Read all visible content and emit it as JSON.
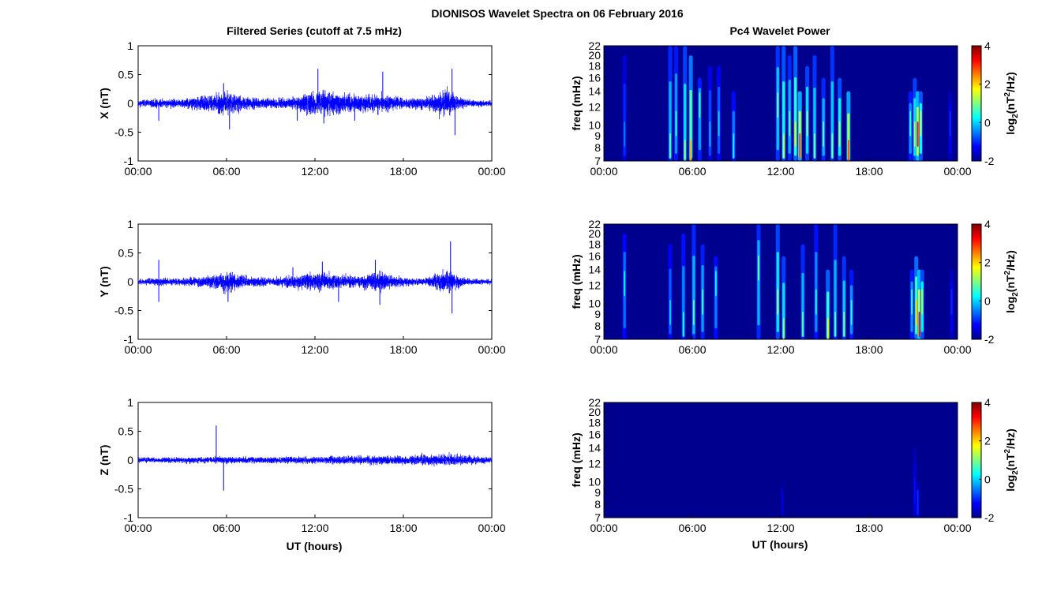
{
  "figure": {
    "title": "DIONISOS Wavelet Spectra on 06 February 2016",
    "left_column_title": "Filtered Series (cutoff at 7.5 mHz)",
    "right_column_title": "Pc4 Wavelet Power",
    "x_axis_label": "UT (hours)",
    "colors": {
      "trace": "#0000ff",
      "background": "#ffffff",
      "axis": "#000000",
      "spectrum_floor": "#00008f"
    }
  },
  "chart_data": [
    {
      "type": "line",
      "id": "series-x",
      "ylabel": "X (nT)",
      "xlim": [
        "00:00",
        "00:00"
      ],
      "x_ticks": [
        "00:00",
        "06:00",
        "12:00",
        "18:00",
        "00:00"
      ],
      "ylim": [
        -1,
        1
      ],
      "y_ticks": [
        "1",
        "0.5",
        "0",
        "-0.5",
        "-1"
      ],
      "grid": false,
      "envelope": {
        "description_hours": [
          0,
          1.5,
          3,
          4.5,
          6,
          7.5,
          9,
          10.5,
          12,
          13.5,
          15,
          16.5,
          18,
          19.5,
          21,
          21.5,
          22.5,
          24
        ],
        "amplitude_nT": [
          0.06,
          0.1,
          0.08,
          0.15,
          0.22,
          0.12,
          0.1,
          0.12,
          0.25,
          0.22,
          0.16,
          0.2,
          0.1,
          0.12,
          0.3,
          0.15,
          0.07,
          0.06
        ]
      },
      "spikes": [
        {
          "hour": 1.4,
          "value": -0.3
        },
        {
          "hour": 5.8,
          "value": 0.35
        },
        {
          "hour": 6.2,
          "value": -0.45
        },
        {
          "hour": 10.8,
          "value": -0.3
        },
        {
          "hour": 12.2,
          "value": 0.6
        },
        {
          "hour": 12.6,
          "value": -0.35
        },
        {
          "hour": 14.7,
          "value": -0.3
        },
        {
          "hour": 16.6,
          "value": 0.55
        },
        {
          "hour": 21.3,
          "value": 0.6
        },
        {
          "hour": 21.5,
          "value": -0.55
        }
      ]
    },
    {
      "type": "line",
      "id": "series-y",
      "ylabel": "Y (nT)",
      "xlim": [
        "00:00",
        "00:00"
      ],
      "x_ticks": [
        "00:00",
        "06:00",
        "12:00",
        "18:00",
        "00:00"
      ],
      "ylim": [
        -1,
        1
      ],
      "y_ticks": [
        "1",
        "0.5",
        "0",
        "-0.5",
        "-1"
      ],
      "grid": false,
      "envelope": {
        "description_hours": [
          0,
          1.5,
          3,
          4.5,
          6,
          7.5,
          9,
          10.5,
          12,
          13.5,
          15,
          16.5,
          18,
          19.5,
          21,
          21.5,
          22.5,
          24
        ],
        "amplitude_nT": [
          0.05,
          0.08,
          0.07,
          0.12,
          0.2,
          0.1,
          0.08,
          0.12,
          0.2,
          0.15,
          0.12,
          0.2,
          0.08,
          0.08,
          0.25,
          0.15,
          0.06,
          0.05
        ]
      },
      "spikes": [
        {
          "hour": 1.4,
          "value": 0.38
        },
        {
          "hour": 1.4,
          "value": -0.35
        },
        {
          "hour": 6.1,
          "value": -0.35
        },
        {
          "hour": 10.5,
          "value": 0.25
        },
        {
          "hour": 12.5,
          "value": 0.35
        },
        {
          "hour": 13.6,
          "value": -0.35
        },
        {
          "hour": 16.1,
          "value": 0.38
        },
        {
          "hour": 16.4,
          "value": -0.4
        },
        {
          "hour": 21.2,
          "value": 0.7
        },
        {
          "hour": 21.3,
          "value": -0.55
        }
      ]
    },
    {
      "type": "line",
      "id": "series-z",
      "ylabel": "Z (nT)",
      "xlim": [
        "00:00",
        "00:00"
      ],
      "x_ticks": [
        "00:00",
        "06:00",
        "12:00",
        "18:00",
        "00:00"
      ],
      "ylim": [
        -1,
        1
      ],
      "y_ticks": [
        "1",
        "0.5",
        "0",
        "-0.5",
        "-1"
      ],
      "grid": false,
      "envelope": {
        "description_hours": [
          0,
          3,
          6,
          9,
          12,
          15,
          18,
          21,
          24
        ],
        "amplitude_nT": [
          0.05,
          0.06,
          0.07,
          0.06,
          0.07,
          0.09,
          0.09,
          0.12,
          0.06
        ]
      },
      "spikes": [
        {
          "hour": 5.3,
          "value": 0.6
        },
        {
          "hour": 5.8,
          "value": -0.53
        }
      ]
    },
    {
      "type": "heatmap",
      "id": "spectrum-x",
      "ylabel": "freq (mHz)",
      "x_ticks": [
        "00:00",
        "06:00",
        "12:00",
        "18:00",
        "00:00"
      ],
      "y_ticks": [
        "22",
        "20",
        "18",
        "16",
        "14",
        "12",
        "10",
        "9",
        "8",
        "7"
      ],
      "ylim": [
        7,
        22
      ],
      "y_scale": "log",
      "colorbar": {
        "label": "log2(nT2/Hz)",
        "ticks": [
          "4",
          "2",
          "0",
          "-2"
        ],
        "range": [
          -2,
          4
        ]
      },
      "streaks": [
        {
          "hour": 1.4,
          "peak_mhz": 9,
          "top_mhz": 20,
          "power": -0.5
        },
        {
          "hour": 4.5,
          "peak_mhz": 8,
          "top_mhz": 22,
          "power": 0.8
        },
        {
          "hour": 4.9,
          "peak_mhz": 10,
          "top_mhz": 22,
          "power": 0.5
        },
        {
          "hour": 5.5,
          "peak_mhz": 7.5,
          "top_mhz": 22,
          "power": 1.2
        },
        {
          "hour": 5.9,
          "peak_mhz": 7.5,
          "top_mhz": 20,
          "power": 2.2
        },
        {
          "hour": 6.5,
          "peak_mhz": 12,
          "top_mhz": 16,
          "power": 0.6
        },
        {
          "hour": 7.2,
          "peak_mhz": 9,
          "top_mhz": 18,
          "power": -0.2
        },
        {
          "hour": 7.8,
          "peak_mhz": 10,
          "top_mhz": 18,
          "power": 0.0
        },
        {
          "hour": 8.8,
          "peak_mhz": 8,
          "top_mhz": 14,
          "power": 0.3
        },
        {
          "hour": 11.8,
          "peak_mhz": 12,
          "top_mhz": 22,
          "power": 1.0
        },
        {
          "hour": 12.2,
          "peak_mhz": 8,
          "top_mhz": 22,
          "power": 1.5
        },
        {
          "hour": 12.6,
          "peak_mhz": 10,
          "top_mhz": 20,
          "power": 0.8
        },
        {
          "hour": 13.0,
          "peak_mhz": 9,
          "top_mhz": 22,
          "power": 1.8
        },
        {
          "hour": 13.3,
          "peak_mhz": 8,
          "top_mhz": 14,
          "power": 3.0
        },
        {
          "hour": 13.8,
          "peak_mhz": 10,
          "top_mhz": 18,
          "power": 1.2
        },
        {
          "hour": 14.3,
          "peak_mhz": 8,
          "top_mhz": 20,
          "power": 1.0
        },
        {
          "hour": 14.9,
          "peak_mhz": 9,
          "top_mhz": 16,
          "power": 0.8
        },
        {
          "hour": 15.5,
          "peak_mhz": 8,
          "top_mhz": 22,
          "power": 1.0
        },
        {
          "hour": 16.0,
          "peak_mhz": 9,
          "top_mhz": 16,
          "power": 1.4
        },
        {
          "hour": 16.6,
          "peak_mhz": 7.5,
          "top_mhz": 14,
          "power": 2.8
        },
        {
          "hour": 20.8,
          "peak_mhz": 10,
          "top_mhz": 14,
          "power": 0.5
        },
        {
          "hour": 21.1,
          "peak_mhz": 9,
          "top_mhz": 16,
          "power": 1.2
        },
        {
          "hour": 21.3,
          "peak_mhz": 9,
          "top_mhz": 14,
          "power": 3.2
        },
        {
          "hour": 21.5,
          "peak_mhz": 10,
          "top_mhz": 14,
          "power": 1.6
        },
        {
          "hour": 23.5,
          "peak_mhz": 10,
          "top_mhz": 14,
          "power": -1.0
        }
      ]
    },
    {
      "type": "heatmap",
      "id": "spectrum-y",
      "ylabel": "freq (mHz)",
      "x_ticks": [
        "00:00",
        "06:00",
        "12:00",
        "18:00",
        "00:00"
      ],
      "y_ticks": [
        "22",
        "20",
        "18",
        "16",
        "14",
        "12",
        "10",
        "9",
        "8",
        "7"
      ],
      "ylim": [
        7,
        22
      ],
      "y_scale": "log",
      "colorbar": {
        "label": "log2(nT2/Hz)",
        "ticks": [
          "4",
          "2",
          "0",
          "-2"
        ],
        "range": [
          -2,
          4
        ]
      },
      "streaks": [
        {
          "hour": 1.4,
          "peak_mhz": 12,
          "top_mhz": 20,
          "power": 0.2
        },
        {
          "hour": 4.5,
          "peak_mhz": 9,
          "top_mhz": 18,
          "power": 0.0
        },
        {
          "hour": 5.4,
          "peak_mhz": 8,
          "top_mhz": 20,
          "power": 0.4
        },
        {
          "hour": 6.1,
          "peak_mhz": 9,
          "top_mhz": 22,
          "power": 0.8
        },
        {
          "hour": 6.7,
          "peak_mhz": 10,
          "top_mhz": 18,
          "power": 0.6
        },
        {
          "hour": 7.6,
          "peak_mhz": 12,
          "top_mhz": 16,
          "power": 0.3
        },
        {
          "hour": 10.5,
          "peak_mhz": 14,
          "top_mhz": 22,
          "power": 0.8
        },
        {
          "hour": 11.8,
          "peak_mhz": 10,
          "top_mhz": 22,
          "power": 1.3
        },
        {
          "hour": 12.2,
          "peak_mhz": 7.5,
          "top_mhz": 16,
          "power": 1.2
        },
        {
          "hour": 13.5,
          "peak_mhz": 8,
          "top_mhz": 18,
          "power": 0.8
        },
        {
          "hour": 14.4,
          "peak_mhz": 10,
          "top_mhz": 22,
          "power": 0.4
        },
        {
          "hour": 15.2,
          "peak_mhz": 7.5,
          "top_mhz": 14,
          "power": 1.8
        },
        {
          "hour": 15.7,
          "peak_mhz": 8,
          "top_mhz": 22,
          "power": 0.8
        },
        {
          "hour": 16.3,
          "peak_mhz": 8,
          "top_mhz": 16,
          "power": 1.0
        },
        {
          "hour": 16.8,
          "peak_mhz": 9,
          "top_mhz": 14,
          "power": 0.5
        },
        {
          "hour": 20.9,
          "peak_mhz": 10,
          "top_mhz": 14,
          "power": 0.5
        },
        {
          "hour": 21.2,
          "peak_mhz": 9,
          "top_mhz": 16,
          "power": 2.0
        },
        {
          "hour": 21.4,
          "peak_mhz": 8,
          "top_mhz": 14,
          "power": 3.3
        },
        {
          "hour": 21.6,
          "peak_mhz": 10,
          "top_mhz": 14,
          "power": 1.4
        },
        {
          "hour": 23.6,
          "peak_mhz": 10,
          "top_mhz": 14,
          "power": -1.0
        }
      ]
    },
    {
      "type": "heatmap",
      "id": "spectrum-z",
      "ylabel": "freq (mHz)",
      "x_ticks": [
        "00:00",
        "06:00",
        "12:00",
        "18:00",
        "00:00"
      ],
      "y_ticks": [
        "22",
        "20",
        "18",
        "16",
        "14",
        "12",
        "10",
        "9",
        "8",
        "7"
      ],
      "ylim": [
        7,
        22
      ],
      "y_scale": "log",
      "colorbar": {
        "label": "log2(nT2/Hz)",
        "ticks": [
          "4",
          "2",
          "0",
          "-2"
        ],
        "range": [
          -2,
          4
        ]
      },
      "streaks": [
        {
          "hour": 12.1,
          "peak_mhz": 8,
          "top_mhz": 10,
          "power": -1.5
        },
        {
          "hour": 21.1,
          "peak_mhz": 9,
          "top_mhz": 14,
          "power": -1.2
        },
        {
          "hour": 21.3,
          "peak_mhz": 8,
          "top_mhz": 10,
          "power": -1.0
        }
      ]
    }
  ]
}
